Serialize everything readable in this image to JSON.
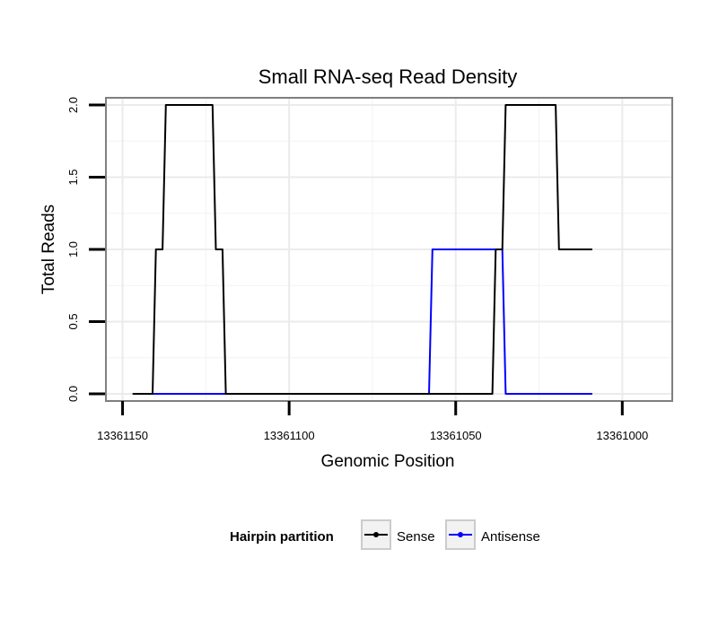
{
  "chart_data": {
    "type": "line",
    "title": "Small RNA-seq Read Density",
    "xlabel": "Genomic Position",
    "ylabel": "Total Reads",
    "x_reversed": true,
    "xlim": [
      13361155,
      13360985
    ],
    "ylim": [
      -0.05,
      2.05
    ],
    "x_ticks": [
      13361150,
      13361100,
      13361050,
      13361000
    ],
    "x_tick_labels": [
      "13361150",
      "13361100",
      "13361050",
      "13361000"
    ],
    "y_ticks": [
      0.0,
      0.5,
      1.0,
      1.5,
      2.0
    ],
    "y_tick_labels": [
      "0.0",
      "0.5",
      "1.0",
      "1.5",
      "2.0"
    ],
    "grid": true,
    "legend": {
      "title": "Hairpin partition",
      "position": "bottom"
    },
    "series": [
      {
        "name": "Sense",
        "color": "#000000",
        "x": [
          13361147,
          13361141,
          13361140,
          13361138,
          13361137,
          13361123,
          13361122,
          13361120,
          13361119,
          13361039,
          13361038,
          13361036,
          13361035,
          13361020,
          13361019,
          13361009
        ],
        "y": [
          0,
          0,
          1,
          1,
          2,
          2,
          1,
          1,
          0,
          0,
          1,
          1,
          2,
          2,
          1,
          1
        ]
      },
      {
        "name": "Antisense",
        "color": "#0000ff",
        "x": [
          13361141,
          13361058,
          13361057,
          13361036,
          13361035,
          13361009
        ],
        "y": [
          0,
          0,
          1,
          1,
          0,
          0
        ]
      }
    ]
  }
}
